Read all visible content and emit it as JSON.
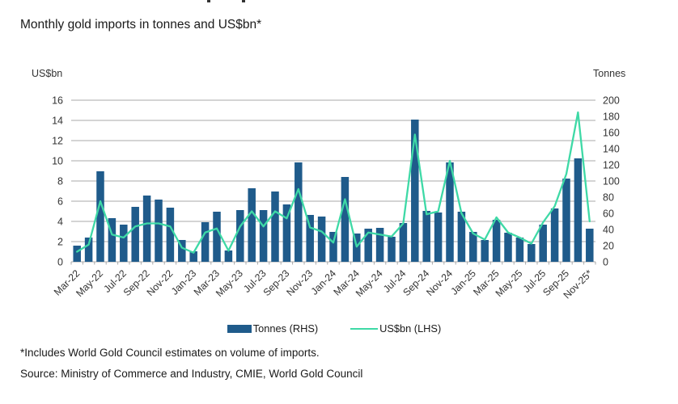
{
  "page": {
    "title": "Monthly gold imports in tonnes and US$bn*",
    "footnote": "*Includes World Gold Council estimates on volume of imports.",
    "source": "Source: Ministry of Commerce and Industry, CMIE, World Gold Council"
  },
  "chart_data": {
    "type": "bar",
    "subtype": "combo-bar-line-dual-axis",
    "title": "Monthly gold imports in tonnes and US$bn*",
    "ylabel_left": "US$bn",
    "ylabel_right": "Tonnes",
    "grid": true,
    "legend_position": "bottom",
    "left_axis": {
      "min": 0,
      "max": 16,
      "step": 2,
      "ticks": [
        16,
        14,
        12,
        10,
        8,
        6,
        4,
        2,
        0
      ]
    },
    "right_axis": {
      "min": 0,
      "max": 200,
      "step": 20,
      "ticks": [
        200,
        180,
        160,
        140,
        120,
        100,
        80,
        60,
        40,
        20,
        0
      ]
    },
    "x_tick_labels": [
      "Mar-22",
      "May-22",
      "Jul-22",
      "Sep-22",
      "Nov-22",
      "Jan-23",
      "Mar-23",
      "May-23",
      "Jul-23",
      "Sep-23",
      "Nov-23",
      "Jan-24",
      "Mar-24",
      "May-24",
      "Jul-24",
      "Sep-24",
      "Nov-24",
      "Jan-25",
      "Mar-25",
      "May-25",
      "Jul-25",
      "Sep-25",
      "Nov-25*"
    ],
    "categories": [
      "Mar-22",
      "Apr-22",
      "May-22",
      "Jun-22",
      "Jul-22",
      "Aug-22",
      "Sep-22",
      "Oct-22",
      "Nov-22",
      "Dec-22",
      "Jan-23",
      "Feb-23",
      "Mar-23",
      "Apr-23",
      "May-23",
      "Jun-23",
      "Jul-23",
      "Aug-23",
      "Sep-23",
      "Oct-23",
      "Nov-23",
      "Dec-23",
      "Jan-24",
      "Feb-24",
      "Mar-24",
      "Apr-24",
      "May-24",
      "Jun-24",
      "Jul-24",
      "Aug-24",
      "Sep-24",
      "Oct-24",
      "Nov-24",
      "Dec-24",
      "Jan-25",
      "Feb-25",
      "Mar-25",
      "Apr-25",
      "May-25",
      "Jun-25",
      "Jul-25",
      "Aug-25",
      "Sep-25",
      "Oct-25",
      "Nov-25"
    ],
    "series": [
      {
        "name": "Tonnes (RHS)",
        "type": "bar",
        "axis": "right",
        "color": "#1f5b8b",
        "values": [
          20,
          30,
          112,
          54,
          46,
          68,
          82,
          77,
          67,
          27,
          13,
          49,
          62,
          14,
          64,
          91,
          64,
          87,
          71,
          123,
          58,
          56,
          37,
          105,
          35,
          41,
          42,
          31,
          48,
          176,
          63,
          61,
          123,
          62,
          37,
          27,
          52,
          36,
          30,
          22,
          46,
          66,
          103,
          128,
          41
        ]
      },
      {
        "name": "US$bn (LHS)",
        "type": "line",
        "axis": "left",
        "color": "#3ed9a6",
        "values": [
          1.0,
          1.7,
          6.0,
          2.7,
          2.4,
          3.5,
          3.8,
          3.8,
          3.5,
          1.4,
          0.9,
          2.9,
          3.3,
          1.1,
          3.5,
          5.0,
          3.5,
          5.0,
          4.3,
          7.2,
          3.4,
          3.0,
          1.9,
          6.2,
          1.5,
          2.9,
          2.7,
          2.5,
          3.8,
          12.6,
          4.7,
          5.0,
          10.0,
          4.8,
          2.8,
          2.2,
          4.4,
          2.9,
          2.4,
          1.8,
          3.9,
          5.5,
          8.7,
          14.8,
          4.0
        ]
      }
    ],
    "legend": {
      "tonnes_label": "Tonnes (RHS)",
      "usdbn_label": "US$bn (LHS)"
    },
    "colors": {
      "bar": "#1f5b8b",
      "line": "#3ed9a6",
      "grid": "#a9a9a9",
      "text": "#1a1a1a",
      "tick_text": "#333333"
    }
  }
}
